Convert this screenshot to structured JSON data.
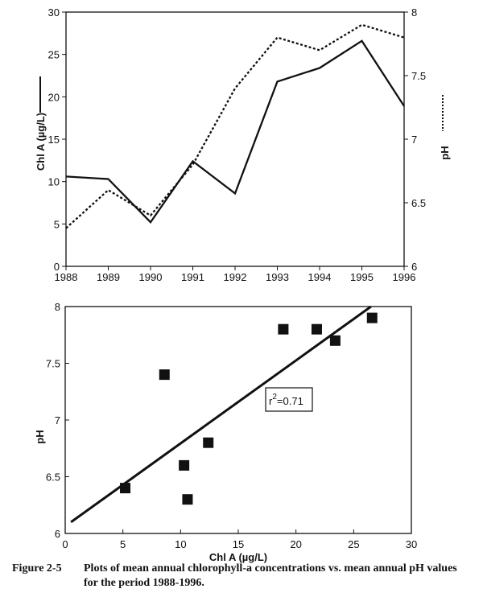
{
  "chart_data": [
    {
      "type": "line",
      "x": [
        1988,
        1989,
        1990,
        1991,
        1992,
        1993,
        1994,
        1995,
        1996
      ],
      "series": [
        {
          "name": "Chl A",
          "axis": "left",
          "style": "solid",
          "values": [
            10.6,
            10.3,
            5.2,
            12.4,
            8.6,
            21.8,
            23.4,
            26.6,
            18.9
          ]
        },
        {
          "name": "pH",
          "axis": "right",
          "style": "dotted",
          "values": [
            6.3,
            6.6,
            6.4,
            6.8,
            7.4,
            7.8,
            7.7,
            7.9,
            7.8
          ]
        }
      ],
      "ylabel": "Chl A (µg/L)",
      "y2label": "pH",
      "ylim": [
        0,
        30
      ],
      "y2lim": [
        6,
        8
      ],
      "xticks": [
        "1988",
        "1989",
        "1990",
        "1991",
        "1992",
        "1993",
        "1994",
        "1995",
        "1996"
      ],
      "yticks": [
        "0",
        "5",
        "10",
        "15",
        "20",
        "25",
        "30"
      ],
      "y2ticks": [
        "6",
        "6.5",
        "7",
        "7.5",
        "8"
      ]
    },
    {
      "type": "scatter",
      "x": [
        10.6,
        10.3,
        5.2,
        12.4,
        8.6,
        21.8,
        23.4,
        26.6,
        18.9
      ],
      "y": [
        6.3,
        6.6,
        6.4,
        6.8,
        7.4,
        7.8,
        7.7,
        7.9,
        7.8
      ],
      "fit_line": {
        "x": [
          0.5,
          26.5
        ],
        "y": [
          6.1,
          8.0
        ]
      },
      "annotation": {
        "base": "r",
        "sup": "2",
        "rest": "=0.71"
      },
      "xlabel": "Chl A (µg/L)",
      "ylabel": "pH",
      "xlim": [
        0,
        30
      ],
      "ylim": [
        6,
        8
      ],
      "xticks": [
        "0",
        "5",
        "10",
        "15",
        "20",
        "25",
        "30"
      ],
      "yticks": [
        "6",
        "6.5",
        "7",
        "7.5",
        "8"
      ]
    }
  ],
  "caption": {
    "label": "Figure 2-5",
    "line1": "Plots of mean annual chlorophyll-a concentrations vs.  mean annual pH values",
    "line2": "for the period 1988-1996."
  }
}
